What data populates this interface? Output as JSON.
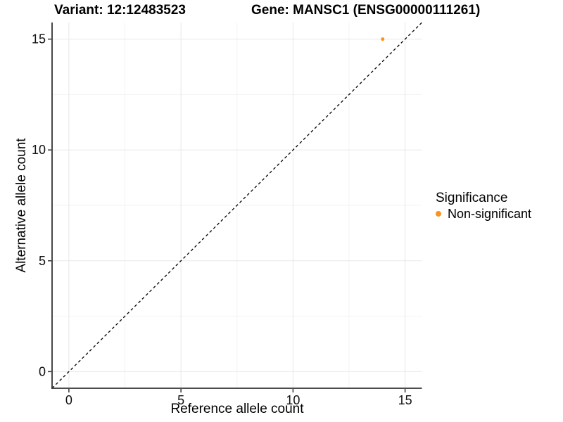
{
  "title": {
    "variant": "Variant: 12:12483523",
    "gene": "Gene: MANSC1 (ENSG00000111261)"
  },
  "legend": {
    "title": "Significance",
    "items": [
      {
        "label": "Non-significant",
        "color": "#F8941E"
      }
    ]
  },
  "chart_data": {
    "type": "scatter",
    "title": "Variant: 12:12483523    Gene: MANSC1 (ENSG00000111261)",
    "xlabel": "Reference allele count",
    "ylabel": "Alternative allele count",
    "xlim": [
      -0.75,
      15.75
    ],
    "ylim": [
      -0.75,
      15.75
    ],
    "x_ticks": [
      0,
      5,
      10,
      15
    ],
    "y_ticks": [
      0,
      5,
      10,
      15
    ],
    "grid": true,
    "legend_position": "right",
    "series": [
      {
        "name": "Non-significant",
        "color": "#F8941E",
        "points": [
          {
            "x": 14,
            "y": 15
          }
        ],
        "point_radius_px": 2.5
      }
    ],
    "reference_line": {
      "type": "identity y=x",
      "style": "dashed",
      "color": "#000000"
    },
    "colors": {
      "grid_major": "#E8E8E8",
      "grid_minor": "#F3F3F3",
      "axis": "#333333"
    }
  }
}
